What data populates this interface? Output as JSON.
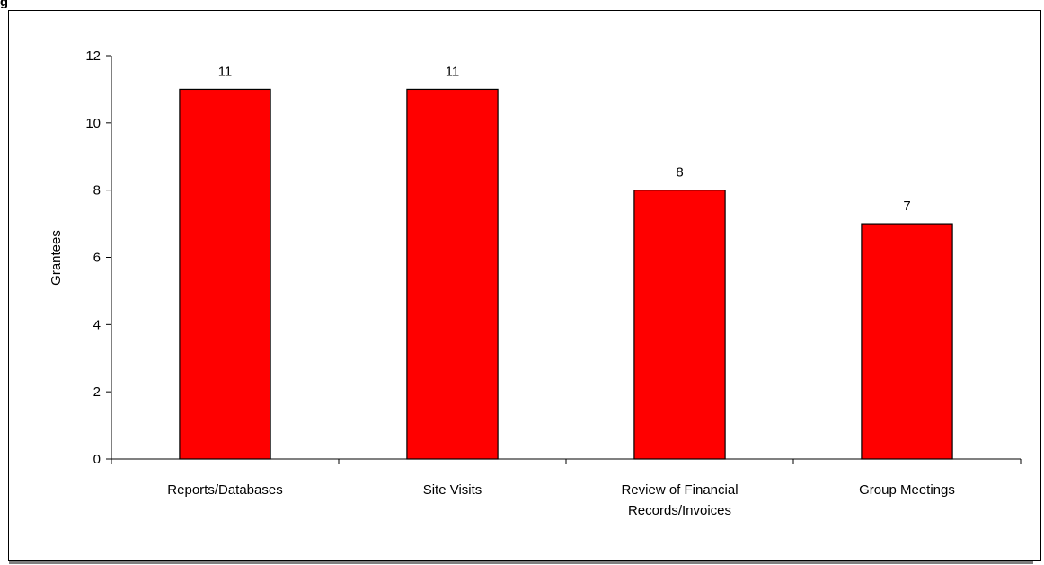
{
  "chart_data": {
    "type": "bar",
    "title": "",
    "xlabel": "",
    "ylabel": "Grantees",
    "ylim": [
      0,
      12
    ],
    "yticks": [
      0,
      2,
      4,
      6,
      8,
      10,
      12
    ],
    "grid": false,
    "legend": "none",
    "categories": [
      [
        "Reports/Databases"
      ],
      [
        "Site Visits"
      ],
      [
        "Review of Financial",
        "Records/Invoices"
      ],
      [
        "Group Meetings"
      ]
    ],
    "values": [
      11,
      11,
      8,
      7
    ],
    "colors": {
      "bar_fill": "#ff0000",
      "bar_stroke": "#000000"
    }
  },
  "header_fragment": "g"
}
